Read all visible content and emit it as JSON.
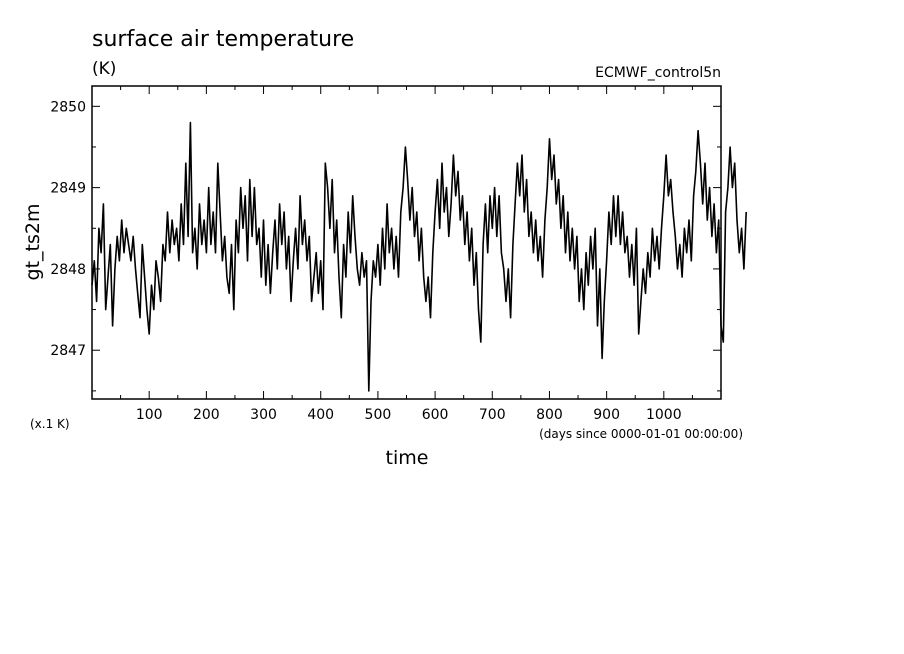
{
  "chart_data": {
    "type": "line",
    "title": "surface air temperature",
    "units": "(K)",
    "source": "ECMWF_control5n",
    "ylabel": "gt_ts2m",
    "xlabel": "time",
    "x_units_note": "(days since 0000-01-01 00:00:00)",
    "y_scale_note": "(x.1 K)",
    "xlim": [
      0,
      1100
    ],
    "ylim": [
      2846.4,
      2850.25
    ],
    "x_ticks": [
      100,
      200,
      300,
      400,
      500,
      600,
      700,
      800,
      900,
      1000
    ],
    "x_tick_labels": [
      "100",
      "200",
      "300",
      "400",
      "500",
      "600",
      "700",
      "800",
      "900",
      "1000"
    ],
    "y_ticks": [
      2847,
      2848,
      2849,
      2850
    ],
    "y_tick_labels": [
      "2847",
      "2848",
      "2849",
      "2850"
    ],
    "line_color": "#000000",
    "series": [
      {
        "name": "gt_ts2m",
        "x_start": 0,
        "x_step": 4,
        "values": [
          2847.8,
          2848.1,
          2847.6,
          2848.5,
          2848.2,
          2848.8,
          2847.5,
          2847.9,
          2848.3,
          2847.3,
          2848.0,
          2848.4,
          2848.1,
          2848.6,
          2848.2,
          2848.5,
          2848.3,
          2848.1,
          2848.4,
          2848.0,
          2847.7,
          2847.4,
          2848.3,
          2847.9,
          2847.5,
          2847.2,
          2847.8,
          2847.5,
          2848.1,
          2847.9,
          2847.6,
          2848.3,
          2848.1,
          2848.7,
          2848.2,
          2848.6,
          2848.3,
          2848.5,
          2848.1,
          2848.8,
          2848.3,
          2849.3,
          2848.4,
          2849.8,
          2848.2,
          2848.5,
          2848.0,
          2848.8,
          2848.3,
          2848.6,
          2848.2,
          2849.0,
          2848.3,
          2848.7,
          2848.2,
          2849.3,
          2848.7,
          2848.1,
          2848.4,
          2847.9,
          2847.7,
          2848.3,
          2847.5,
          2848.6,
          2848.2,
          2849.0,
          2848.5,
          2848.9,
          2848.1,
          2849.1,
          2848.4,
          2849.0,
          2848.3,
          2848.5,
          2847.9,
          2848.6,
          2847.8,
          2848.3,
          2847.7,
          2848.2,
          2848.6,
          2848.0,
          2848.8,
          2848.3,
          2848.7,
          2848.0,
          2848.4,
          2847.6,
          2848.1,
          2848.5,
          2848.0,
          2848.9,
          2848.3,
          2848.6,
          2848.1,
          2848.4,
          2847.6,
          2847.9,
          2848.2,
          2847.7,
          2848.1,
          2847.5,
          2849.3,
          2849.0,
          2848.5,
          2849.1,
          2848.2,
          2848.6,
          2847.9,
          2847.4,
          2848.3,
          2847.9,
          2848.7,
          2848.2,
          2848.9,
          2848.4,
          2848.0,
          2847.8,
          2848.2,
          2847.9,
          2848.1,
          2846.5,
          2847.6,
          2848.1,
          2847.9,
          2848.3,
          2847.8,
          2848.5,
          2848.0,
          2848.8,
          2848.2,
          2848.5,
          2848.0,
          2848.4,
          2847.9,
          2848.7,
          2849.0,
          2849.5,
          2849.1,
          2848.6,
          2849.0,
          2848.4,
          2848.7,
          2848.1,
          2848.5,
          2847.9,
          2847.6,
          2847.9,
          2847.4,
          2848.2,
          2848.7,
          2849.1,
          2848.5,
          2849.3,
          2848.7,
          2849.0,
          2848.4,
          2848.8,
          2849.4,
          2848.9,
          2849.2,
          2848.6,
          2848.9,
          2848.3,
          2848.7,
          2848.1,
          2848.5,
          2847.8,
          2848.2,
          2847.5,
          2847.1,
          2848.3,
          2848.8,
          2848.2,
          2848.9,
          2848.5,
          2849.0,
          2848.4,
          2848.9,
          2848.2,
          2848.0,
          2847.6,
          2848.0,
          2847.4,
          2848.3,
          2848.8,
          2849.3,
          2848.9,
          2849.4,
          2848.7,
          2849.1,
          2848.4,
          2848.7,
          2848.2,
          2848.6,
          2848.1,
          2848.4,
          2847.9,
          2848.6,
          2849.0,
          2849.6,
          2849.1,
          2849.4,
          2848.8,
          2849.1,
          2848.5,
          2848.9,
          2848.2,
          2848.7,
          2848.1,
          2848.5,
          2848.0,
          2848.4,
          2847.6,
          2848.0,
          2847.5,
          2848.2,
          2847.8,
          2848.4,
          2848.0,
          2848.5,
          2847.3,
          2848.0,
          2846.9,
          2847.6,
          2848.1,
          2848.7,
          2848.3,
          2848.9,
          2848.4,
          2848.9,
          2848.3,
          2848.7,
          2848.2,
          2848.4,
          2847.9,
          2848.3,
          2847.8,
          2848.5,
          2847.2,
          2847.6,
          2848.0,
          2847.7,
          2848.2,
          2847.9,
          2848.5,
          2848.1,
          2848.4,
          2848.0,
          2848.5,
          2848.9,
          2849.4,
          2848.9,
          2849.1,
          2848.7,
          2848.4,
          2848.0,
          2848.3,
          2847.9,
          2848.5,
          2848.2,
          2848.6,
          2848.1,
          2848.9,
          2849.2,
          2849.7,
          2849.3,
          2848.8,
          2849.3,
          2848.6,
          2849.0,
          2848.4,
          2848.8,
          2848.2,
          2848.6,
          2847.3,
          2847.1,
          2848.7,
          2849.0,
          2849.5,
          2849.0,
          2849.3,
          2848.6,
          2848.2,
          2848.5,
          2848.0,
          2848.7
        ]
      }
    ]
  }
}
